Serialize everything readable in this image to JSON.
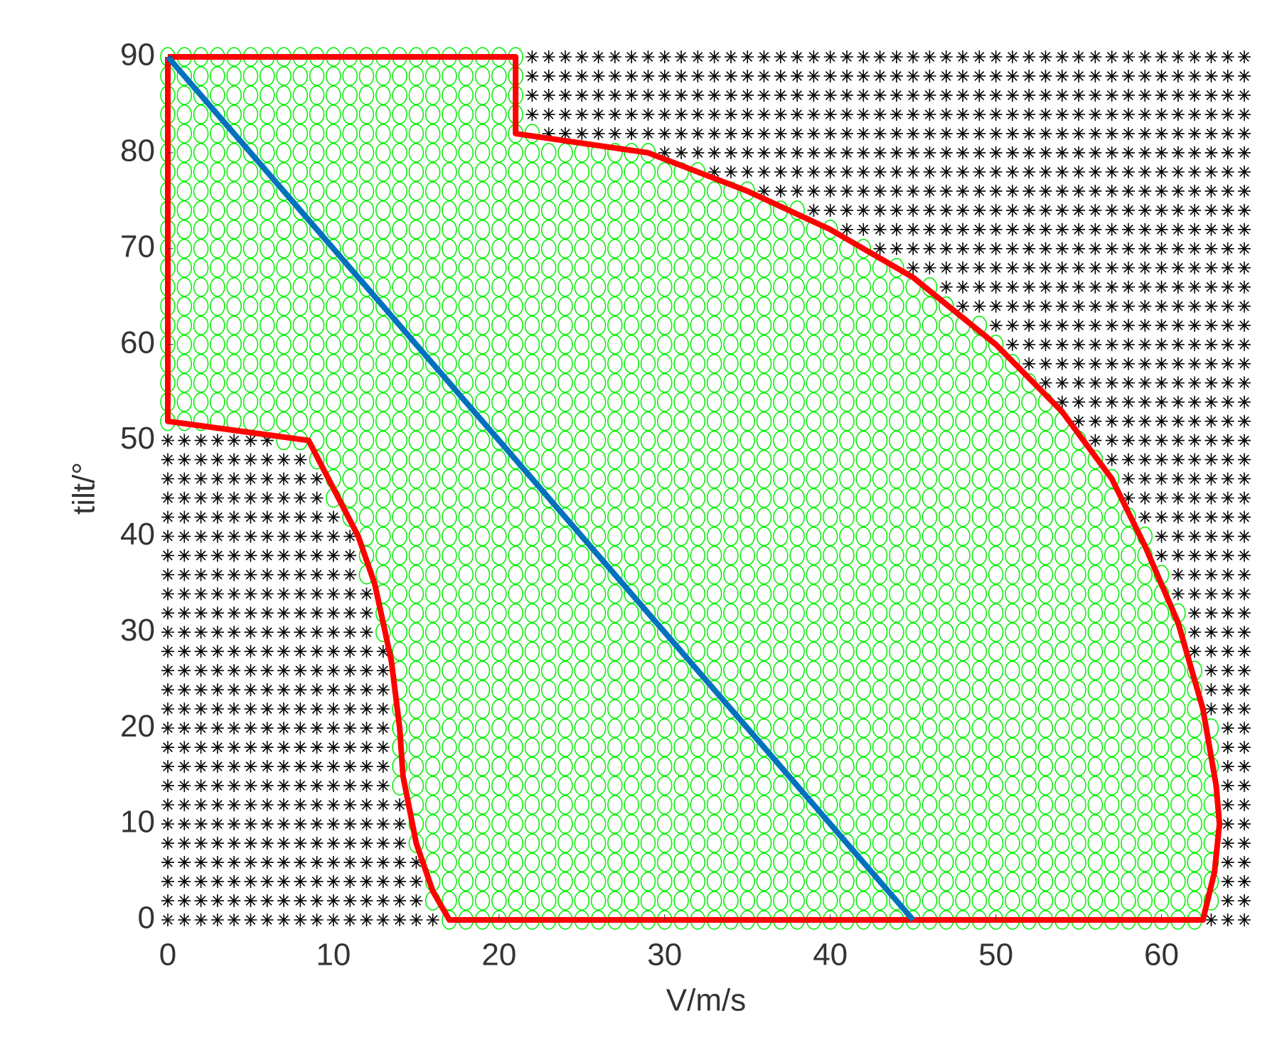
{
  "chart_data": {
    "type": "scatter",
    "x_label": "V/m/s",
    "y_label": "tilt/°",
    "xlim": [
      0,
      65
    ],
    "ylim": [
      0,
      90
    ],
    "xticks": [
      0,
      10,
      20,
      30,
      40,
      50,
      60
    ],
    "yticks": [
      0,
      10,
      20,
      30,
      40,
      50,
      60,
      70,
      80,
      90
    ],
    "feasible_color": "#00ee00",
    "infeasible_color": "#000000",
    "grid_x": [
      0,
      1,
      2,
      3,
      4,
      5,
      6,
      7,
      8,
      9,
      10,
      11,
      12,
      13,
      14,
      15,
      16,
      17,
      18,
      19,
      20,
      21,
      22,
      23,
      24,
      25,
      26,
      27,
      28,
      29,
      30,
      31,
      32,
      33,
      34,
      35,
      36,
      37,
      38,
      39,
      40,
      41,
      42,
      43,
      44,
      45,
      46,
      47,
      48,
      49,
      50,
      51,
      52,
      53,
      54,
      55,
      56,
      57,
      58,
      59,
      60,
      61,
      62,
      63,
      64,
      65
    ],
    "grid_y": [
      0,
      2,
      4,
      6,
      8,
      10,
      12,
      14,
      16,
      18,
      20,
      22,
      24,
      26,
      28,
      30,
      32,
      34,
      36,
      38,
      40,
      42,
      44,
      46,
      48,
      50,
      52,
      54,
      56,
      58,
      60,
      62,
      64,
      66,
      68,
      70,
      72,
      74,
      76,
      78,
      80,
      82,
      84,
      86,
      88,
      90
    ],
    "lines": [
      {
        "color": "#ff0000",
        "x": [
          0,
          21,
          21,
          29,
          35,
          40,
          45,
          50,
          54,
          57,
          59,
          61,
          62.5,
          63.3,
          63.5,
          63.2,
          62.5,
          17,
          16,
          15,
          14.2,
          14,
          13.5,
          12.5,
          11.5,
          10,
          8.5,
          0,
          0
        ],
        "y": [
          90,
          90,
          82,
          80,
          76,
          72,
          67,
          60,
          53,
          46,
          39,
          31,
          22,
          14,
          10,
          5,
          0,
          0,
          3,
          8,
          15,
          20,
          27,
          35,
          40,
          45,
          50,
          52,
          90
        ]
      },
      {
        "color": "#0072bd",
        "x": [
          0,
          45
        ],
        "y": [
          90,
          0
        ]
      }
    ]
  }
}
